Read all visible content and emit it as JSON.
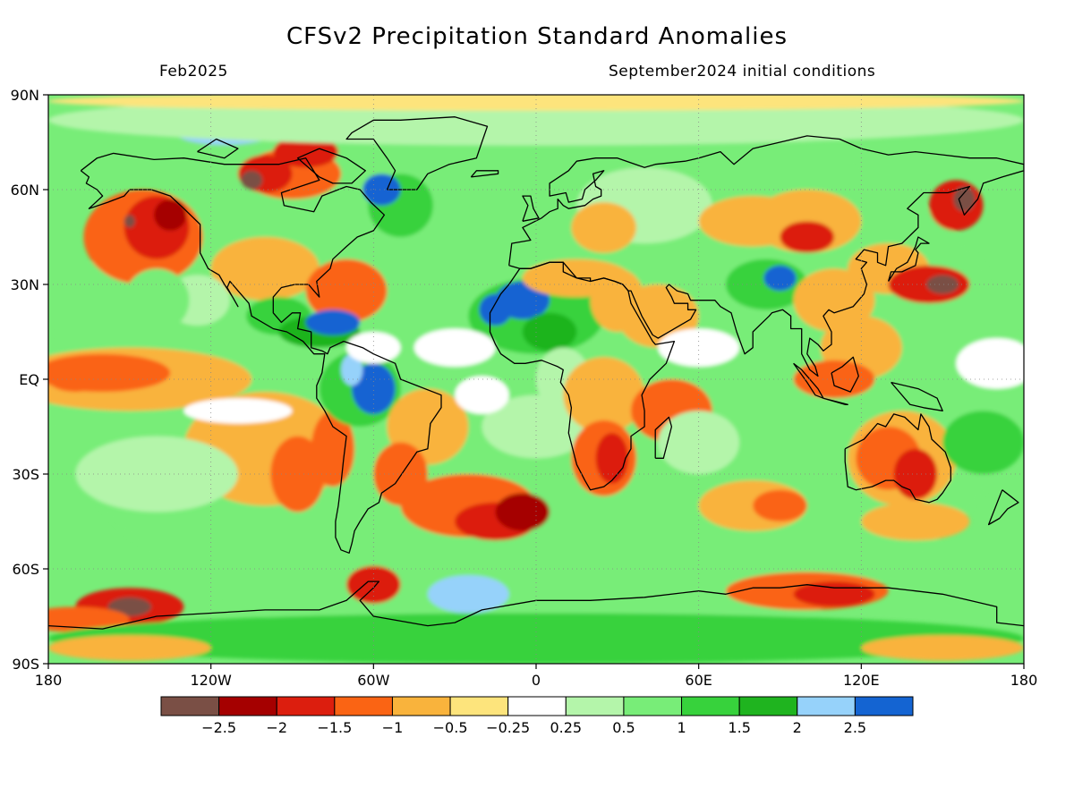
{
  "title": "CFSv2 Precipitation Standard Anomalies",
  "valid_period": "Feb2025",
  "initial_conditions": "September2024 initial conditions",
  "lat_labels": [
    "90N",
    "60N",
    "30N",
    "EQ",
    "30S",
    "60S",
    "90S"
  ],
  "lon_labels": [
    "180",
    "120W",
    "60W",
    "0",
    "60E",
    "120E",
    "180"
  ],
  "colorbar": {
    "labels": [
      "-2.5",
      "-2",
      "-1.5",
      "-1",
      "-0.5",
      "-0.25",
      "0.25",
      "0.5",
      "1",
      "1.5",
      "2",
      "2.5"
    ],
    "colors": [
      "#7a4f45",
      "#a50000",
      "#dc1e0e",
      "#fa6414",
      "#f9b33c",
      "#fde47c",
      "#ffffff",
      "#b4f5aa",
      "#78ed78",
      "#37d23c",
      "#1fb41f",
      "#96d2fa",
      "#1464d2"
    ]
  },
  "anomaly_regions": [
    {
      "name": "Northeast Pacific / Gulf of Alaska",
      "value": -2.5
    },
    {
      "name": "Northern Canada / Hudson Bay",
      "value": -2.5
    },
    {
      "name": "Equatorial central Pacific",
      "value": -1
    },
    {
      "name": "South Pacific off Chile",
      "value": -1.5
    },
    {
      "name": "South Atlantic",
      "value": -2
    },
    {
      "name": "Southern Africa",
      "value": -2
    },
    {
      "name": "Australia",
      "value": -2
    },
    {
      "name": "Southern Ocean near Ross Sea",
      "value": -2.5
    },
    {
      "name": "Kamchatka",
      "value": -2.5
    },
    {
      "name": "Labrador Sea",
      "value": 2.5
    },
    {
      "name": "Amazon basin",
      "value": 2.5
    },
    {
      "name": "West Africa / Sahel",
      "value": 2.5
    },
    {
      "name": "Caribbean",
      "value": 2.5
    },
    {
      "name": "Tibetan Plateau",
      "value": 2
    },
    {
      "name": "Maritime continent",
      "value": -1.5
    }
  ]
}
